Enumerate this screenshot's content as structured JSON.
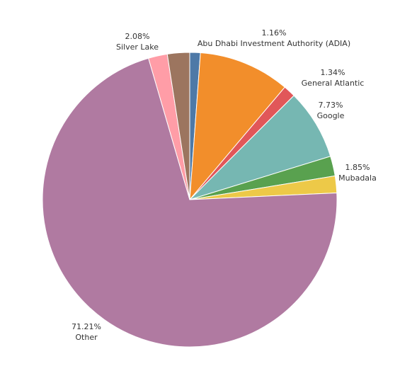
{
  "chart_data": {
    "type": "pie",
    "title": "",
    "legend": "none",
    "slices": [
      {
        "label": "Abu Dhabi Investment Authority (ADIA)",
        "value": 1.16,
        "value_label": "1.16%",
        "color": "#4e79a7",
        "labeled": true
      },
      {
        "label": "",
        "value": 10.01,
        "value_label": "",
        "color": "#f28e2b",
        "labeled": false
      },
      {
        "label": "General Atlantic",
        "value": 1.34,
        "value_label": "1.34%",
        "color": "#e15759",
        "labeled": true
      },
      {
        "label": "Google",
        "value": 7.73,
        "value_label": "7.73%",
        "color": "#76b7b2",
        "labeled": true
      },
      {
        "label": "",
        "value": 2.18,
        "value_label": "",
        "color": "#59a14f",
        "labeled": false
      },
      {
        "label": "Mubadala",
        "value": 1.85,
        "value_label": "1.85%",
        "color": "#edc948",
        "labeled": true
      },
      {
        "label": "Other",
        "value": 71.21,
        "value_label": "71.21%",
        "color": "#b07aa1",
        "labeled": true
      },
      {
        "label": "Silver Lake",
        "value": 2.08,
        "value_label": "2.08%",
        "color": "#ff9da7",
        "labeled": true
      },
      {
        "label": "",
        "value": 2.44,
        "value_label": "",
        "color": "#9c755f",
        "labeled": false
      }
    ]
  }
}
